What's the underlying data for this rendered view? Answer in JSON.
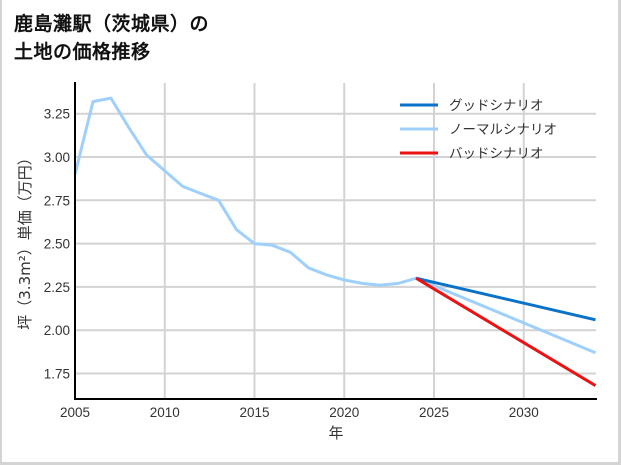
{
  "title_line1": "鹿島灘駅（茨城県）の",
  "title_line2": "土地の価格推移",
  "colors": {
    "good": "#0a72c8",
    "normal": "#9fd0fb",
    "bad": "#ee1111",
    "grid": "#d3d3d3",
    "axis": "#000000"
  },
  "chart_data": {
    "type": "line",
    "title": "鹿島灘駅（茨城県）の土地の価格推移",
    "xlabel": "年",
    "ylabel": "坪（3.3m²）単価（万円）",
    "xlim": [
      2005,
      2034
    ],
    "ylim": [
      1.62,
      3.4
    ],
    "grid": true,
    "legend_position": "upper right",
    "x_ticks": [
      "2005",
      "2010",
      "2015",
      "2020",
      "2025",
      "2030"
    ],
    "y_ticks": [
      "1.75",
      "2.00",
      "2.25",
      "2.50",
      "2.75",
      "3.00",
      "3.25"
    ],
    "series": [
      {
        "name": "グッドシナリオ",
        "color": "#0a72c8",
        "x": [
          2024,
          2034
        ],
        "values": [
          2.3,
          2.06
        ]
      },
      {
        "name": "ノーマルシナリオ",
        "color": "#9fd0fb",
        "x": [
          2005,
          2006,
          2007,
          2008,
          2009,
          2010,
          2011,
          2012,
          2013,
          2014,
          2015,
          2016,
          2017,
          2018,
          2019,
          2020,
          2021,
          2022,
          2023,
          2024,
          2034
        ],
        "values": [
          2.9,
          3.32,
          3.34,
          3.17,
          3.01,
          2.92,
          2.83,
          2.79,
          2.75,
          2.58,
          2.5,
          2.49,
          2.45,
          2.36,
          2.32,
          2.29,
          2.27,
          2.26,
          2.27,
          2.3,
          1.87
        ]
      },
      {
        "name": "バッドシナリオ",
        "color": "#ee1111",
        "x": [
          2024,
          2034
        ],
        "values": [
          2.3,
          1.68
        ]
      }
    ]
  }
}
